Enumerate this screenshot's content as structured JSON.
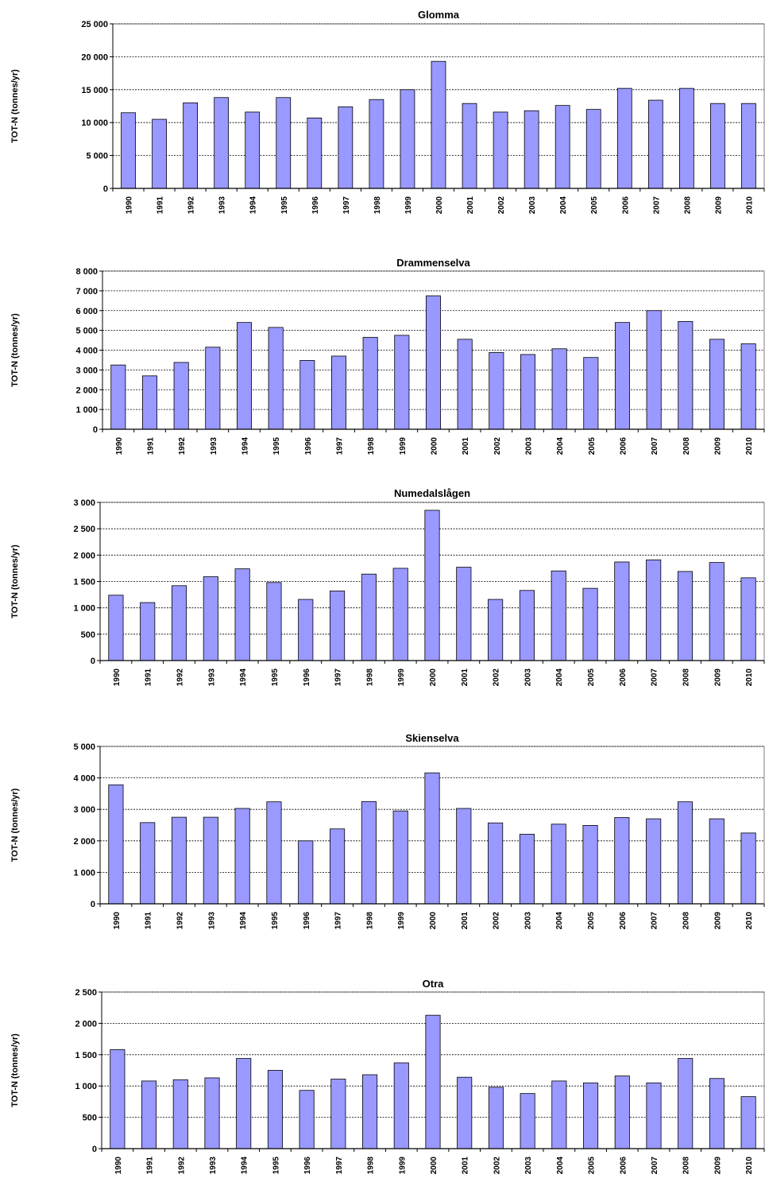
{
  "chart_data": [
    {
      "type": "bar",
      "title": "Glomma",
      "ylabel": "TOT-N (tonnes/yr)",
      "ylim": [
        0,
        25000
      ],
      "yticks": [
        "0",
        "5 000",
        "10 000",
        "15 000",
        "20 000",
        "25 000"
      ],
      "ytick_values": [
        0,
        5000,
        10000,
        15000,
        20000,
        25000
      ],
      "categories": [
        "1990",
        "1991",
        "1992",
        "1993",
        "1994",
        "1995",
        "1996",
        "1997",
        "1998",
        "1999",
        "2000",
        "2001",
        "2002",
        "2003",
        "2004",
        "2005",
        "2006",
        "2007",
        "2008",
        "2009",
        "2010"
      ],
      "values": [
        11500,
        10500,
        13000,
        13800,
        11600,
        13800,
        10700,
        12400,
        13500,
        15000,
        19300,
        12900,
        11600,
        11800,
        12600,
        12000,
        15200,
        13400,
        15200,
        12900,
        12900
      ],
      "bar_color": "#9999ff"
    },
    {
      "type": "bar",
      "title": "Drammenselva",
      "ylabel": "TOT-N (tonnes/yr)",
      "ylim": [
        0,
        8000
      ],
      "yticks": [
        "0",
        "1 000",
        "2 000",
        "3 000",
        "4 000",
        "5 000",
        "6 000",
        "7 000",
        "8 000"
      ],
      "ytick_values": [
        0,
        1000,
        2000,
        3000,
        4000,
        5000,
        6000,
        7000,
        8000
      ],
      "categories": [
        "1990",
        "1991",
        "1992",
        "1993",
        "1994",
        "1995",
        "1996",
        "1997",
        "1998",
        "1999",
        "2000",
        "2001",
        "2002",
        "2003",
        "2004",
        "2005",
        "2006",
        "2007",
        "2008",
        "2009",
        "2010"
      ],
      "values": [
        3250,
        2700,
        3380,
        4150,
        5400,
        5150,
        3480,
        3700,
        4650,
        4750,
        6750,
        4550,
        3880,
        3780,
        4070,
        3630,
        5400,
        6000,
        5450,
        4550,
        4320
      ],
      "bar_color": "#9999ff"
    },
    {
      "type": "bar",
      "title": "Numedalslågen",
      "ylabel": "TOT-N (tonnes/yr)",
      "ylim": [
        0,
        3000
      ],
      "yticks": [
        "0",
        "500",
        "1 000",
        "1 500",
        "2 000",
        "2 500",
        "3 000"
      ],
      "ytick_values": [
        0,
        500,
        1000,
        1500,
        2000,
        2500,
        3000
      ],
      "categories": [
        "1990",
        "1991",
        "1992",
        "1993",
        "1994",
        "1995",
        "1996",
        "1997",
        "1998",
        "1999",
        "2000",
        "2001",
        "2002",
        "2003",
        "2004",
        "2005",
        "2006",
        "2007",
        "2008",
        "2009",
        "2010"
      ],
      "values": [
        1240,
        1100,
        1420,
        1590,
        1740,
        1480,
        1160,
        1320,
        1640,
        1750,
        2850,
        1770,
        1160,
        1330,
        1700,
        1370,
        1870,
        1910,
        1690,
        1860,
        1570
      ],
      "bar_color": "#9999ff"
    },
    {
      "type": "bar",
      "title": "Skienselva",
      "ylabel": "TOT-N (tonnes/yr)",
      "ylim": [
        0,
        5000
      ],
      "yticks": [
        "0",
        "1 000",
        "2 000",
        "3 000",
        "4 000",
        "5 000"
      ],
      "ytick_values": [
        0,
        1000,
        2000,
        3000,
        4000,
        5000
      ],
      "categories": [
        "1990",
        "1991",
        "1992",
        "1993",
        "1994",
        "1995",
        "1996",
        "1997",
        "1998",
        "1999",
        "2000",
        "2001",
        "2002",
        "2003",
        "2004",
        "2005",
        "2006",
        "2007",
        "2008",
        "2009",
        "2010"
      ],
      "values": [
        3780,
        2580,
        2750,
        2750,
        3030,
        3240,
        2000,
        2380,
        3250,
        2950,
        4160,
        3030,
        2570,
        2210,
        2530,
        2490,
        2740,
        2700,
        3240,
        2700,
        2250
      ],
      "bar_color": "#9999ff"
    },
    {
      "type": "bar",
      "title": "Otra",
      "ylabel": "TOT-N (tonnes/yr)",
      "ylim": [
        0,
        2500
      ],
      "yticks": [
        "0",
        "500",
        "1 000",
        "1 500",
        "2 000",
        "2 500"
      ],
      "ytick_values": [
        0,
        500,
        1000,
        1500,
        2000,
        2500
      ],
      "categories": [
        "1990",
        "1991",
        "1992",
        "1993",
        "1994",
        "1995",
        "1996",
        "1997",
        "1998",
        "1999",
        "2000",
        "2001",
        "2002",
        "2003",
        "2004",
        "2005",
        "2006",
        "2007",
        "2008",
        "2009",
        "2010"
      ],
      "values": [
        1580,
        1080,
        1100,
        1130,
        1440,
        1250,
        930,
        1110,
        1180,
        1370,
        2130,
        1140,
        980,
        880,
        1080,
        1050,
        1160,
        1050,
        1440,
        1120,
        830
      ],
      "bar_color": "#9999ff"
    }
  ]
}
